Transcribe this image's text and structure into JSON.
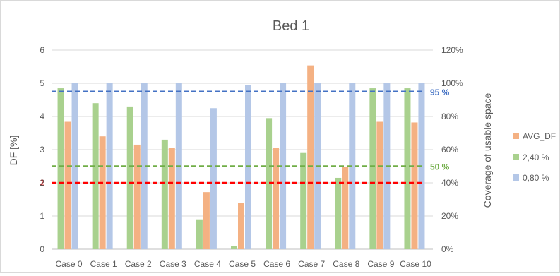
{
  "chart_data": {
    "type": "bar",
    "title": "Bed 1",
    "xlabel": "",
    "ylabel": "DF [%]",
    "y2label": "Coverage of usable space",
    "categories": [
      "Case 0",
      "Case 1",
      "Case 2",
      "Case 3",
      "Case 4",
      "Case 5",
      "Case 6",
      "Case 7",
      "Case 8",
      "Case 9",
      "Case 10"
    ],
    "ylim": [
      0,
      6
    ],
    "y2lim": [
      0,
      120
    ],
    "yticks": [
      "0",
      "1",
      "2",
      "3",
      "4",
      "5",
      "6"
    ],
    "y2ticks": [
      "0%",
      "20%",
      "40%",
      "60%",
      "80%",
      "100%",
      "120%"
    ],
    "series": [
      {
        "name": "2,40 %",
        "axis": "secondary",
        "color": "#a9d18e",
        "values": [
          97,
          88,
          86,
          66,
          18,
          2,
          79,
          58,
          43,
          97,
          97
        ]
      },
      {
        "name": "AVG_DF",
        "axis": "primary",
        "color": "#f4b183",
        "values": [
          3.84,
          3.4,
          3.15,
          3.05,
          1.72,
          1.4,
          3.06,
          5.54,
          2.48,
          3.84,
          3.82
        ]
      },
      {
        "name": "0,80 %",
        "axis": "secondary",
        "color": "#b4c7e7",
        "values": [
          100,
          100,
          100,
          100,
          85,
          99,
          100,
          100,
          100,
          100,
          100
        ]
      }
    ],
    "legend_order": [
      "AVG_DF",
      "2,40 %",
      "0,80 %"
    ],
    "legend_position": "right",
    "grid": true,
    "reference_lines": [
      {
        "label": "2",
        "axis": "primary",
        "value": 2,
        "color": "#ff0000",
        "label_side": "left"
      },
      {
        "label": "50 %",
        "axis": "secondary",
        "value": 50,
        "color": "#70ad47",
        "label_side": "right"
      },
      {
        "label": "95 %",
        "axis": "secondary",
        "value": 95,
        "color": "#4472c4",
        "label_side": "right"
      }
    ]
  }
}
